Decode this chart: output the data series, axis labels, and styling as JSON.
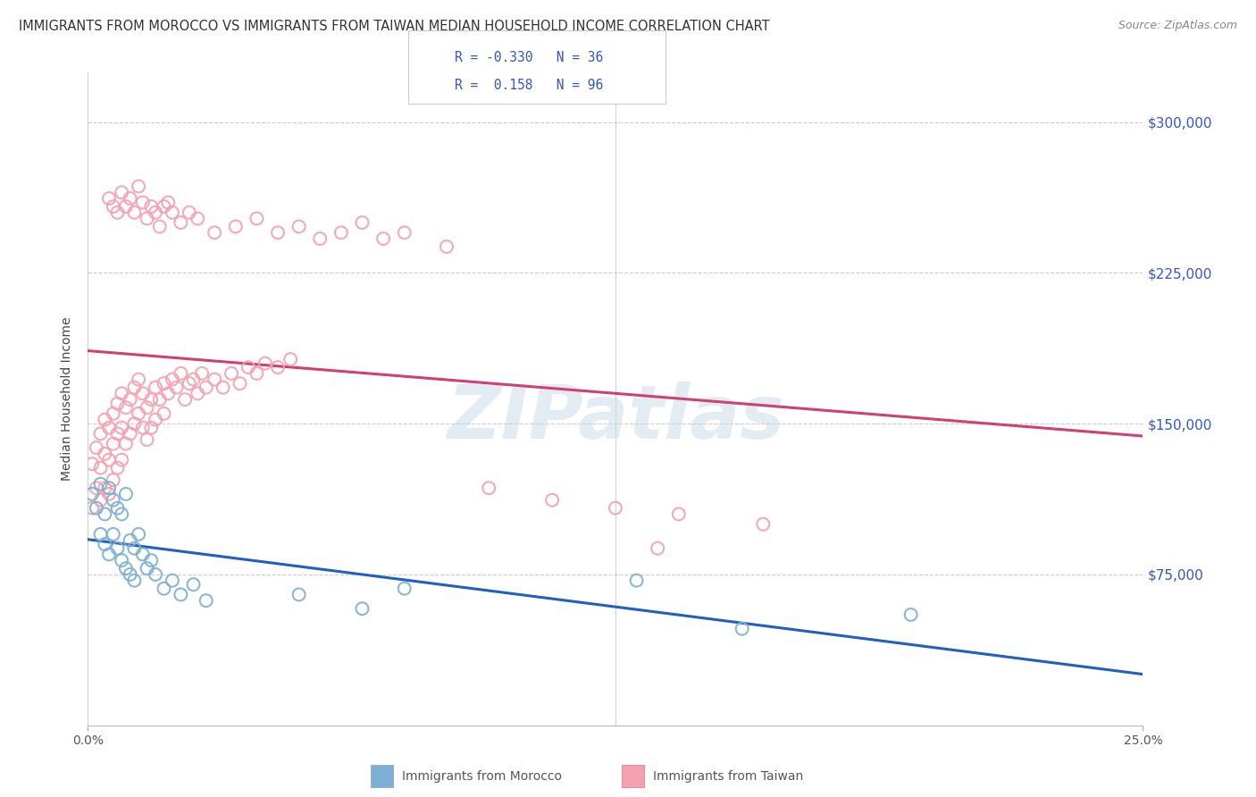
{
  "title": "IMMIGRANTS FROM MOROCCO VS IMMIGRANTS FROM TAIWAN MEDIAN HOUSEHOLD INCOME CORRELATION CHART",
  "source": "Source: ZipAtlas.com",
  "ylabel": "Median Household Income",
  "xlim": [
    0.0,
    0.25
  ],
  "ylim": [
    0,
    325000
  ],
  "yticks": [
    0,
    75000,
    150000,
    225000,
    300000
  ],
  "ytick_labels": [
    "",
    "$75,000",
    "$150,000",
    "$225,000",
    "$300,000"
  ],
  "xtick_labels": [
    "0.0%",
    "25.0%"
  ],
  "background_color": "#ffffff",
  "grid_color": "#cccccc",
  "watermark": "ZIPatlas",
  "morocco_color": "#7bafd4",
  "taiwan_color": "#f4a0b0",
  "morocco_line_color": "#2060c0",
  "taiwan_line_color": "#d04070",
  "morocco_R": -0.33,
  "morocco_N": 36,
  "taiwan_R": 0.158,
  "taiwan_N": 96,
  "morocco_x": [
    0.001,
    0.002,
    0.003,
    0.003,
    0.004,
    0.004,
    0.005,
    0.005,
    0.006,
    0.006,
    0.007,
    0.007,
    0.008,
    0.008,
    0.009,
    0.009,
    0.01,
    0.01,
    0.011,
    0.011,
    0.012,
    0.013,
    0.014,
    0.015,
    0.016,
    0.018,
    0.02,
    0.022,
    0.025,
    0.028,
    0.05,
    0.065,
    0.075,
    0.13,
    0.155,
    0.195
  ],
  "morocco_y": [
    115000,
    108000,
    120000,
    95000,
    105000,
    90000,
    118000,
    85000,
    112000,
    95000,
    108000,
    88000,
    105000,
    82000,
    115000,
    78000,
    92000,
    75000,
    88000,
    72000,
    95000,
    85000,
    78000,
    82000,
    75000,
    68000,
    72000,
    65000,
    70000,
    62000,
    65000,
    58000,
    68000,
    72000,
    48000,
    55000
  ],
  "taiwan_x": [
    0.001,
    0.001,
    0.002,
    0.002,
    0.003,
    0.003,
    0.003,
    0.004,
    0.004,
    0.004,
    0.005,
    0.005,
    0.005,
    0.006,
    0.006,
    0.006,
    0.007,
    0.007,
    0.007,
    0.008,
    0.008,
    0.008,
    0.009,
    0.009,
    0.01,
    0.01,
    0.011,
    0.011,
    0.012,
    0.012,
    0.013,
    0.013,
    0.014,
    0.014,
    0.015,
    0.015,
    0.016,
    0.016,
    0.017,
    0.018,
    0.018,
    0.019,
    0.02,
    0.021,
    0.022,
    0.023,
    0.024,
    0.025,
    0.026,
    0.027,
    0.028,
    0.03,
    0.032,
    0.034,
    0.036,
    0.038,
    0.04,
    0.042,
    0.045,
    0.048,
    0.005,
    0.006,
    0.007,
    0.008,
    0.009,
    0.01,
    0.011,
    0.012,
    0.013,
    0.014,
    0.015,
    0.016,
    0.017,
    0.018,
    0.019,
    0.02,
    0.022,
    0.024,
    0.026,
    0.03,
    0.035,
    0.04,
    0.045,
    0.05,
    0.055,
    0.06,
    0.065,
    0.07,
    0.075,
    0.085,
    0.095,
    0.11,
    0.125,
    0.14,
    0.16,
    0.135
  ],
  "taiwan_y": [
    130000,
    108000,
    138000,
    118000,
    145000,
    128000,
    112000,
    152000,
    135000,
    118000,
    148000,
    132000,
    115000,
    155000,
    140000,
    122000,
    160000,
    145000,
    128000,
    165000,
    148000,
    132000,
    158000,
    140000,
    162000,
    145000,
    168000,
    150000,
    172000,
    155000,
    165000,
    148000,
    158000,
    142000,
    162000,
    148000,
    168000,
    152000,
    162000,
    170000,
    155000,
    165000,
    172000,
    168000,
    175000,
    162000,
    170000,
    172000,
    165000,
    175000,
    168000,
    172000,
    168000,
    175000,
    170000,
    178000,
    175000,
    180000,
    178000,
    182000,
    262000,
    258000,
    255000,
    265000,
    258000,
    262000,
    255000,
    268000,
    260000,
    252000,
    258000,
    255000,
    248000,
    258000,
    260000,
    255000,
    250000,
    255000,
    252000,
    245000,
    248000,
    252000,
    245000,
    248000,
    242000,
    245000,
    250000,
    242000,
    245000,
    238000,
    118000,
    112000,
    108000,
    105000,
    100000,
    88000
  ]
}
